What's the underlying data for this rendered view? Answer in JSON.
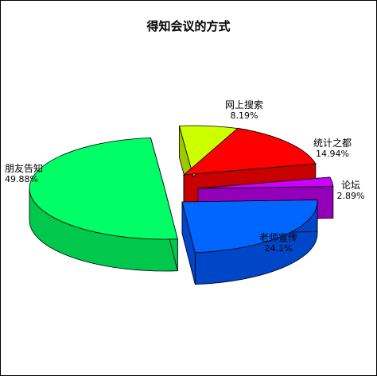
{
  "chart_data": {
    "type": "pie",
    "title": "得知会议的方式",
    "slices": [
      {
        "label": "朋友告知",
        "value": 49.88,
        "pct_label": "49.88%",
        "color": "#00ff66",
        "side": "#00c84c"
      },
      {
        "label": "网上搜索",
        "value": 8.19,
        "pct_label": "8.19%",
        "color": "#ccff00",
        "side": "#9ec800"
      },
      {
        "label": "统计之都",
        "value": 14.94,
        "pct_label": "14.94%",
        "color": "#ff0000",
        "side": "#c80000"
      },
      {
        "label": "论坛",
        "value": 2.89,
        "pct_label": "2.89%",
        "color": "#cc00ff",
        "side": "#9400ba"
      },
      {
        "label": "老师宣传",
        "value": 24.1,
        "pct_label": "24.1%",
        "color": "#0066ff",
        "side": "#0046c8"
      }
    ],
    "style": "3d-exploded",
    "legend": "none"
  }
}
